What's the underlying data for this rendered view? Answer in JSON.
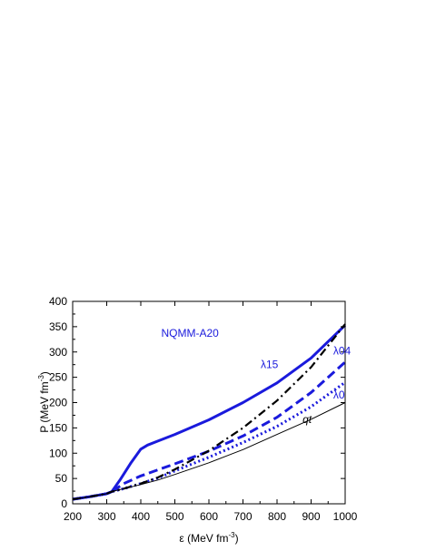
{
  "chart_data": {
    "type": "line",
    "title": "",
    "annotation_title": "NQMM-A20",
    "xlabel": "ε (MeV fm",
    "xlabel_sup": "-3",
    "xlabel_tail": ")",
    "ylabel": "P (MeV fm",
    "ylabel_sup": "-3",
    "ylabel_tail": ")",
    "xlim": [
      200,
      1000
    ],
    "ylim": [
      0,
      400
    ],
    "xticks": [
      200,
      300,
      400,
      500,
      600,
      700,
      800,
      900,
      1000
    ],
    "yticks": [
      0,
      50,
      100,
      150,
      200,
      250,
      300,
      350,
      400
    ],
    "grid": false,
    "legend": "none",
    "series": [
      {
        "name": "λ15",
        "color": "#1a1adc",
        "style": "solid-thick",
        "x": [
          200,
          250,
          300,
          315,
          340,
          370,
          400,
          420,
          450,
          500,
          600,
          700,
          800,
          900,
          1000
        ],
        "y": [
          9,
          14,
          20,
          24,
          48,
          80,
          108,
          116,
          124,
          137,
          166,
          200,
          239,
          288,
          353
        ]
      },
      {
        "name": "λ04",
        "color": "#1a1adc",
        "style": "dashed-thick",
        "x": [
          200,
          250,
          300,
          315,
          350,
          400,
          450,
          500,
          600,
          700,
          800,
          900,
          1000
        ],
        "y": [
          9,
          14,
          20,
          24,
          40,
          55,
          67,
          79,
          104,
          134,
          171,
          220,
          280
        ]
      },
      {
        "name": "λ0",
        "color": "#1a1adc",
        "style": "dotted-thick",
        "x": [
          200,
          250,
          300,
          315,
          350,
          400,
          450,
          500,
          600,
          700,
          800,
          900,
          1000
        ],
        "y": [
          9,
          14,
          20,
          24,
          30,
          40,
          51,
          65,
          92,
          121,
          153,
          192,
          240
        ]
      },
      {
        "name": "",
        "color": "#000000",
        "style": "dashdot",
        "x": [
          200,
          250,
          300,
          315,
          350,
          400,
          450,
          500,
          600,
          700,
          800,
          900,
          1000
        ],
        "y": [
          9,
          14,
          20,
          24,
          30,
          40,
          52,
          68,
          105,
          150,
          204,
          270,
          355
        ]
      },
      {
        "name": "qt",
        "color": "#000000",
        "style": "thin",
        "x": [
          200,
          250,
          300,
          315,
          350,
          400,
          450,
          500,
          600,
          700,
          800,
          900,
          1000
        ],
        "y": [
          9,
          14,
          20,
          24,
          30,
          38,
          47,
          58,
          81,
          107,
          137,
          167,
          200
        ]
      }
    ],
    "labels": [
      {
        "text": "λ15",
        "color": "#1a1adc",
        "italic": false,
        "x": 752,
        "y": 268
      },
      {
        "text": "λ04",
        "color": "#1a1adc",
        "italic": false,
        "x": 965,
        "y": 295
      },
      {
        "text": "λ0",
        "color": "#1a1adc",
        "italic": false,
        "x": 965,
        "y": 208
      },
      {
        "text": "qt",
        "color": "#000000",
        "italic": true,
        "x": 875,
        "y": 160
      }
    ],
    "annotation_color": "#1a1adc",
    "annotation_pos": {
      "x": 460,
      "y": 330
    }
  }
}
